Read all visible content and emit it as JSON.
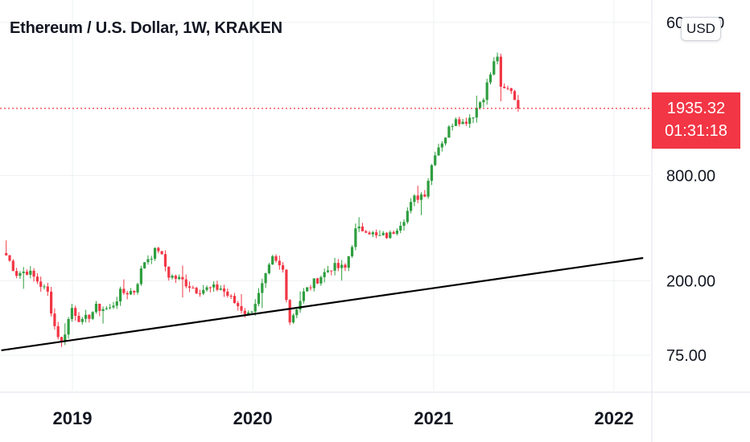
{
  "title": "Ethereum / U.S. Dollar, 1W, KRAKEN",
  "currency_button": "USD",
  "price_label": {
    "price": "1935.32",
    "countdown": "01:31:18"
  },
  "colors": {
    "up": "#26a69a",
    "up_bar": "#2e9e3f",
    "down": "#f23645",
    "trendline": "#000000",
    "grid": "#eef0f3",
    "price_line": "#f23645"
  },
  "chart_data": {
    "type": "candlestick",
    "title": "Ethereum / U.S. Dollar, 1W, KRAKEN",
    "interval": "1W",
    "exchange": "KRAKEN",
    "y_scale": "log",
    "y_ticks": [
      {
        "value": 6000,
        "label": "6000.00"
      },
      {
        "value": 800,
        "label": "800.00"
      },
      {
        "value": 200,
        "label": "200.00"
      },
      {
        "value": 75,
        "label": "75.00"
      }
    ],
    "x_ticks": [
      {
        "value": "2019-01-01",
        "label": "2019"
      },
      {
        "value": "2020-01-01",
        "label": "2020"
      },
      {
        "value": "2021-01-01",
        "label": "2021"
      },
      {
        "value": "2022-01-01",
        "label": "2022"
      }
    ],
    "xlim": [
      "2018-08-20",
      "2022-03-01"
    ],
    "ylim": [
      45,
      6800
    ],
    "last_price": 1935.32,
    "close_path": [
      [
        "2018-08-20",
        280
      ],
      [
        "2018-09-10",
        220
      ],
      [
        "2018-10-01",
        228
      ],
      [
        "2018-10-22",
        200
      ],
      [
        "2018-11-12",
        170
      ],
      [
        "2018-11-26",
        110
      ],
      [
        "2018-12-10",
        88
      ],
      [
        "2018-12-31",
        140
      ],
      [
        "2019-01-21",
        115
      ],
      [
        "2019-02-18",
        140
      ],
      [
        "2019-03-18",
        138
      ],
      [
        "2019-04-08",
        170
      ],
      [
        "2019-05-06",
        175
      ],
      [
        "2019-05-27",
        260
      ],
      [
        "2019-06-24",
        305
      ],
      [
        "2019-07-15",
        215
      ],
      [
        "2019-08-12",
        200
      ],
      [
        "2019-09-09",
        178
      ],
      [
        "2019-10-07",
        180
      ],
      [
        "2019-10-28",
        182
      ],
      [
        "2019-11-25",
        150
      ],
      [
        "2019-12-23",
        128
      ],
      [
        "2020-01-13",
        165
      ],
      [
        "2020-02-10",
        265
      ],
      [
        "2020-03-02",
        230
      ],
      [
        "2020-03-16",
        118
      ],
      [
        "2020-04-13",
        170
      ],
      [
        "2020-05-11",
        205
      ],
      [
        "2020-06-08",
        240
      ],
      [
        "2020-07-06",
        235
      ],
      [
        "2020-07-27",
        385
      ],
      [
        "2020-08-17",
        400
      ],
      [
        "2020-09-07",
        355
      ],
      [
        "2020-10-05",
        365
      ],
      [
        "2020-11-02",
        460
      ],
      [
        "2020-11-23",
        590
      ],
      [
        "2020-12-14",
        640
      ],
      [
        "2021-01-04",
        1100
      ],
      [
        "2021-01-25",
        1350
      ],
      [
        "2021-02-15",
        1750
      ],
      [
        "2021-03-01",
        1600
      ],
      [
        "2021-03-22",
        1800
      ],
      [
        "2021-04-12",
        2300
      ],
      [
        "2021-05-03",
        3500
      ],
      [
        "2021-05-10",
        3900
      ],
      [
        "2021-05-17",
        2450
      ],
      [
        "2021-06-07",
        2500
      ],
      [
        "2021-06-21",
        1935.32
      ]
    ],
    "trendline": [
      [
        "2018-08-10",
        80
      ],
      [
        "2022-03-01",
        270
      ]
    ],
    "grid": true
  }
}
